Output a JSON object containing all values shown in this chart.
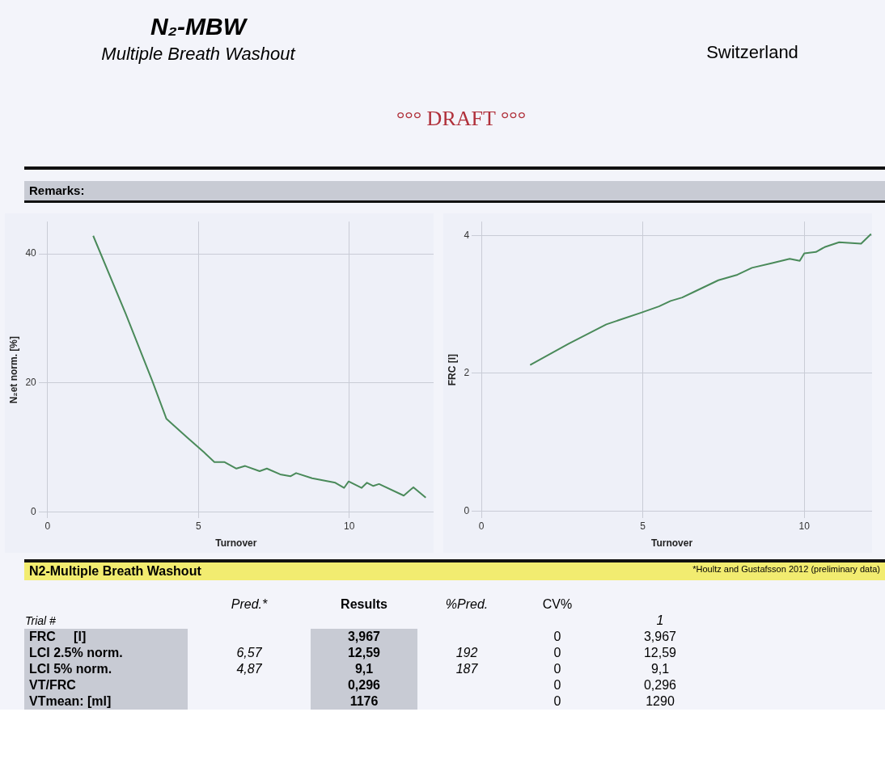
{
  "chart_data": [
    {
      "type": "line",
      "title": "N₂-MBW",
      "subtitle": "Multiple Breath Washout",
      "annotations": [
        "°°° DRAFT °°°",
        "Switzerland",
        "Remarks:"
      ],
      "xlabel": "Turnover",
      "ylabel": "N₂et norm. [%]",
      "x": [
        1.51,
        2.59,
        3.46,
        3.94,
        4.61,
        5.19,
        5.53,
        5.87,
        6.26,
        6.55,
        7.03,
        7.27,
        7.71,
        8.05,
        8.24,
        8.77,
        9.54,
        9.83,
        9.98,
        10.41,
        10.59,
        10.8,
        10.99,
        11.81,
        12.13,
        12.54
      ],
      "series": [
        {
          "color": "#4a8a5a",
          "values": [
            42.8,
            30.7,
            20.4,
            14.4,
            11.6,
            9.2,
            7.7,
            7.7,
            6.7,
            7.1,
            6.3,
            6.7,
            5.8,
            5.5,
            6.0,
            5.2,
            4.5,
            3.7,
            4.7,
            3.7,
            4.5,
            4.0,
            4.3,
            2.5,
            3.8,
            2.2
          ]
        }
      ],
      "xlim": [
        -0.3,
        12.8
      ],
      "ylim": [
        -1,
        45
      ],
      "xticks": [
        0,
        5,
        10
      ],
      "yticks": [
        0,
        20,
        40
      ],
      "grid": true,
      "legend": false,
      "marker": "none"
    },
    {
      "type": "line",
      "xlabel": "Turnover",
      "ylabel": "FRC [l]",
      "x": [
        1.51,
        2.7,
        3.87,
        4.95,
        5.5,
        5.86,
        6.22,
        6.58,
        7.34,
        7.93,
        8.38,
        9.01,
        9.55,
        9.86,
        10.0,
        10.36,
        10.63,
        11.08,
        11.76,
        12.07
      ],
      "series": [
        {
          "color": "#4a8a5a",
          "values": [
            2.12,
            2.43,
            2.71,
            2.88,
            2.97,
            3.05,
            3.1,
            3.18,
            3.35,
            3.43,
            3.53,
            3.6,
            3.66,
            3.63,
            3.74,
            3.76,
            3.83,
            3.9,
            3.88,
            4.02
          ]
        }
      ],
      "xlim": [
        -0.3,
        12.1
      ],
      "ylim": [
        -0.1,
        4.2
      ],
      "xticks": [
        0,
        5,
        10
      ],
      "yticks": [
        0,
        2,
        4
      ],
      "grid": true,
      "legend": false,
      "marker": "none"
    },
    {
      "type": "other",
      "title": "N2-Multiple Breath Washout",
      "annotations": [
        "*Houltz and Gustafsson 2012 (preliminary data)"
      ],
      "legend_title": "Trial #",
      "categories": [
        "FRC     [l]",
        "LCI 2.5% norm.",
        "LCI 5% norm.",
        "VT/FRC",
        "VTmean: [ml]"
      ],
      "series": [
        {
          "name": "Pred.*",
          "values": [
            null,
            6.57,
            4.87,
            null,
            null
          ],
          "value_labels": [
            null,
            "6,57",
            "4,87",
            null,
            null
          ]
        },
        {
          "name": "Results",
          "values": [
            3.967,
            12.59,
            9.1,
            0.296,
            1176
          ],
          "value_labels": [
            "3,967",
            "12,59",
            "9,1",
            "0,296",
            "1176"
          ]
        },
        {
          "name": "%Pred.",
          "values": [
            null,
            192,
            187,
            null,
            null
          ],
          "value_labels": [
            null,
            "192",
            "187",
            null,
            null
          ]
        },
        {
          "name": "CV%",
          "values": [
            0,
            0,
            0,
            0,
            0
          ],
          "value_labels": [
            "0",
            "0",
            "0",
            "0",
            "0"
          ]
        },
        {
          "name": "1",
          "values": [
            3.967,
            12.59,
            9.1,
            0.296,
            1290
          ],
          "value_labels": [
            "3,967",
            "12,59",
            "9,1",
            "0,296",
            "1290"
          ]
        }
      ]
    }
  ]
}
